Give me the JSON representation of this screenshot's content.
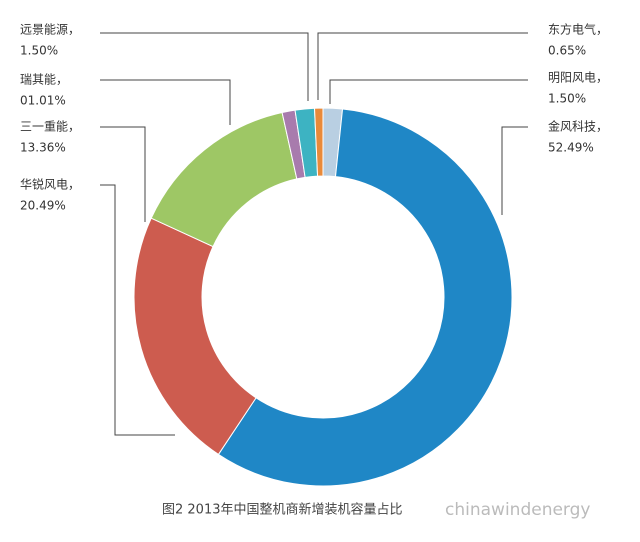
{
  "chart_data": {
    "type": "donut",
    "caption": "图2 2013年中国整机商新增装机容量占比",
    "watermark": "chinawindenergy",
    "categories": [
      "明阳风电，",
      "金风科技，",
      "华锐风电，",
      "三一重能，",
      "瑞其能，",
      "远景能源，",
      "东方电气，"
    ],
    "values": [
      1.5,
      52.49,
      20.49,
      13.36,
      1.01,
      1.5,
      0.65
    ],
    "value_labels": [
      "1.50%",
      "52.49%",
      "20.49%",
      "13.36%",
      "01.01%",
      "1.50%",
      "0.65%"
    ],
    "colors": [
      "#b9cfe2",
      "#1f87c6",
      "#cd5c4f",
      "#9ec765",
      "#a87bad",
      "#3db3c2",
      "#e98a3a"
    ]
  }
}
